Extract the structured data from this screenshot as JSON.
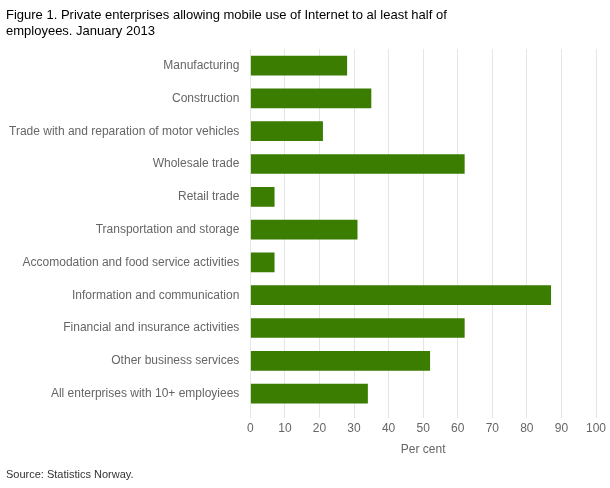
{
  "chart_data": {
    "type": "bar",
    "orientation": "horizontal",
    "title": [
      "Figure 1. Private enterprises allowing mobile use of Internet to al least half of",
      "employees. January 2013"
    ],
    "categories": [
      "Manufacturing",
      "Construction",
      "Trade with and reparation of motor vehicles",
      "Wholesale trade",
      "Retail trade",
      "Transportation and storage",
      "Accomodation and food service activities",
      "Information and communication",
      "Financial and insurance activities",
      "Other business services",
      "All enterprises with 10+ employiees"
    ],
    "values": [
      28,
      35,
      21,
      62,
      7,
      31,
      7,
      87,
      62,
      52,
      34
    ],
    "color": "#3a7d00",
    "xlabel": "Per cent",
    "xlim": [
      0,
      100
    ],
    "xticks": [
      0,
      10,
      20,
      30,
      40,
      50,
      60,
      70,
      80,
      90,
      100
    ],
    "grid": true,
    "annotations": [
      "Source: Statistics Norway."
    ]
  }
}
